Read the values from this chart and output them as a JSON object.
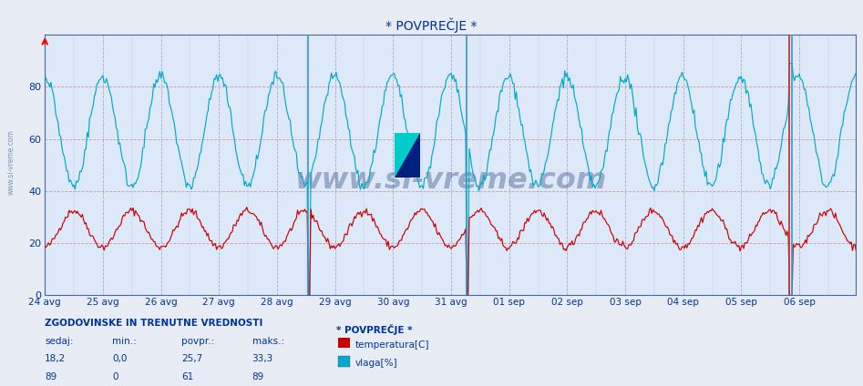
{
  "title": "* POVPREČJE *",
  "bg_color": "#e8ecf5",
  "plot_bg_color": "#dde8f8",
  "x_ticks": [
    "24 avg",
    "25 avg",
    "26 avg",
    "27 avg",
    "28 avg",
    "29 avg",
    "30 avg",
    "31 avg",
    "01 sep",
    "02 sep",
    "03 sep",
    "04 sep",
    "05 sep",
    "06 sep"
  ],
  "ylim": [
    0,
    100
  ],
  "yticks": [
    0,
    20,
    40,
    60,
    80
  ],
  "temp_color": "#cc0000",
  "humidity_color": "#00aacc",
  "watermark_text": "www.si-vreme.com",
  "watermark_color": "#1a3a6e",
  "watermark_alpha": 0.35,
  "footer_title": "ZGODOVINSKE IN TRENUTNE VREDNOSTI",
  "footer_headers": [
    "sedaj:",
    "min.:",
    "povpr.:",
    "maks.:"
  ],
  "footer_temp": [
    "18,2",
    "0,0",
    "25,7",
    "33,3"
  ],
  "footer_hum": [
    "89",
    "0",
    "61",
    "89"
  ],
  "footer_legend_label1": "* POVPREČJE *",
  "footer_legend_label2": "temperatura[C]",
  "footer_legend_label3": "vlaga[%]",
  "n_points": 672,
  "logo_yellow": "#FFE000",
  "logo_cyan": "#00CCCC",
  "logo_blue": "#002080",
  "spine_color": "#4466aa",
  "grid_v_color": "#aaaacc",
  "grid_h_color": "#cc9999",
  "tick_color": "#003399",
  "side_label_color": "#5577aa"
}
